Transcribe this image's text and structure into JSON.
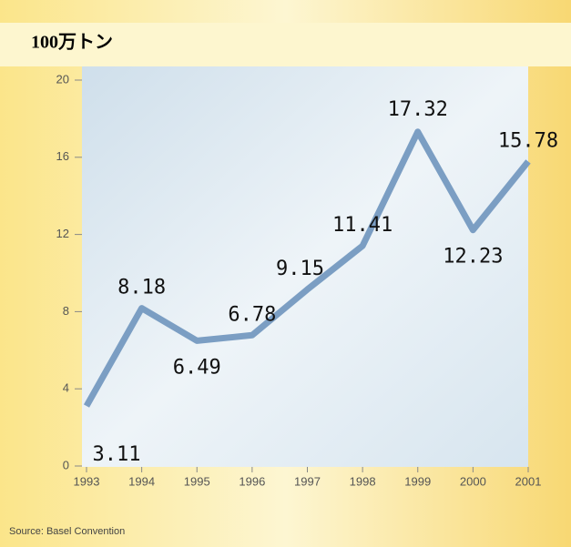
{
  "chart_data": {
    "type": "line",
    "y_axis_label": "100万トン",
    "source": "Source: Basel Convention",
    "x": [
      1993,
      1994,
      1995,
      1996,
      1997,
      1998,
      1999,
      2000,
      2001
    ],
    "series": [
      {
        "color": "#7b9ec3",
        "values": [
          3.11,
          8.18,
          6.49,
          6.78,
          9.15,
          11.41,
          17.32,
          12.23,
          15.78
        ]
      }
    ],
    "xlim": [
      1993,
      2001
    ],
    "xticks": [
      1993,
      1994,
      1995,
      1996,
      1997,
      1998,
      1999,
      2000,
      2001
    ],
    "ylim": [
      0,
      20
    ],
    "yticks": [
      0,
      4,
      8,
      12,
      16,
      20
    ]
  }
}
